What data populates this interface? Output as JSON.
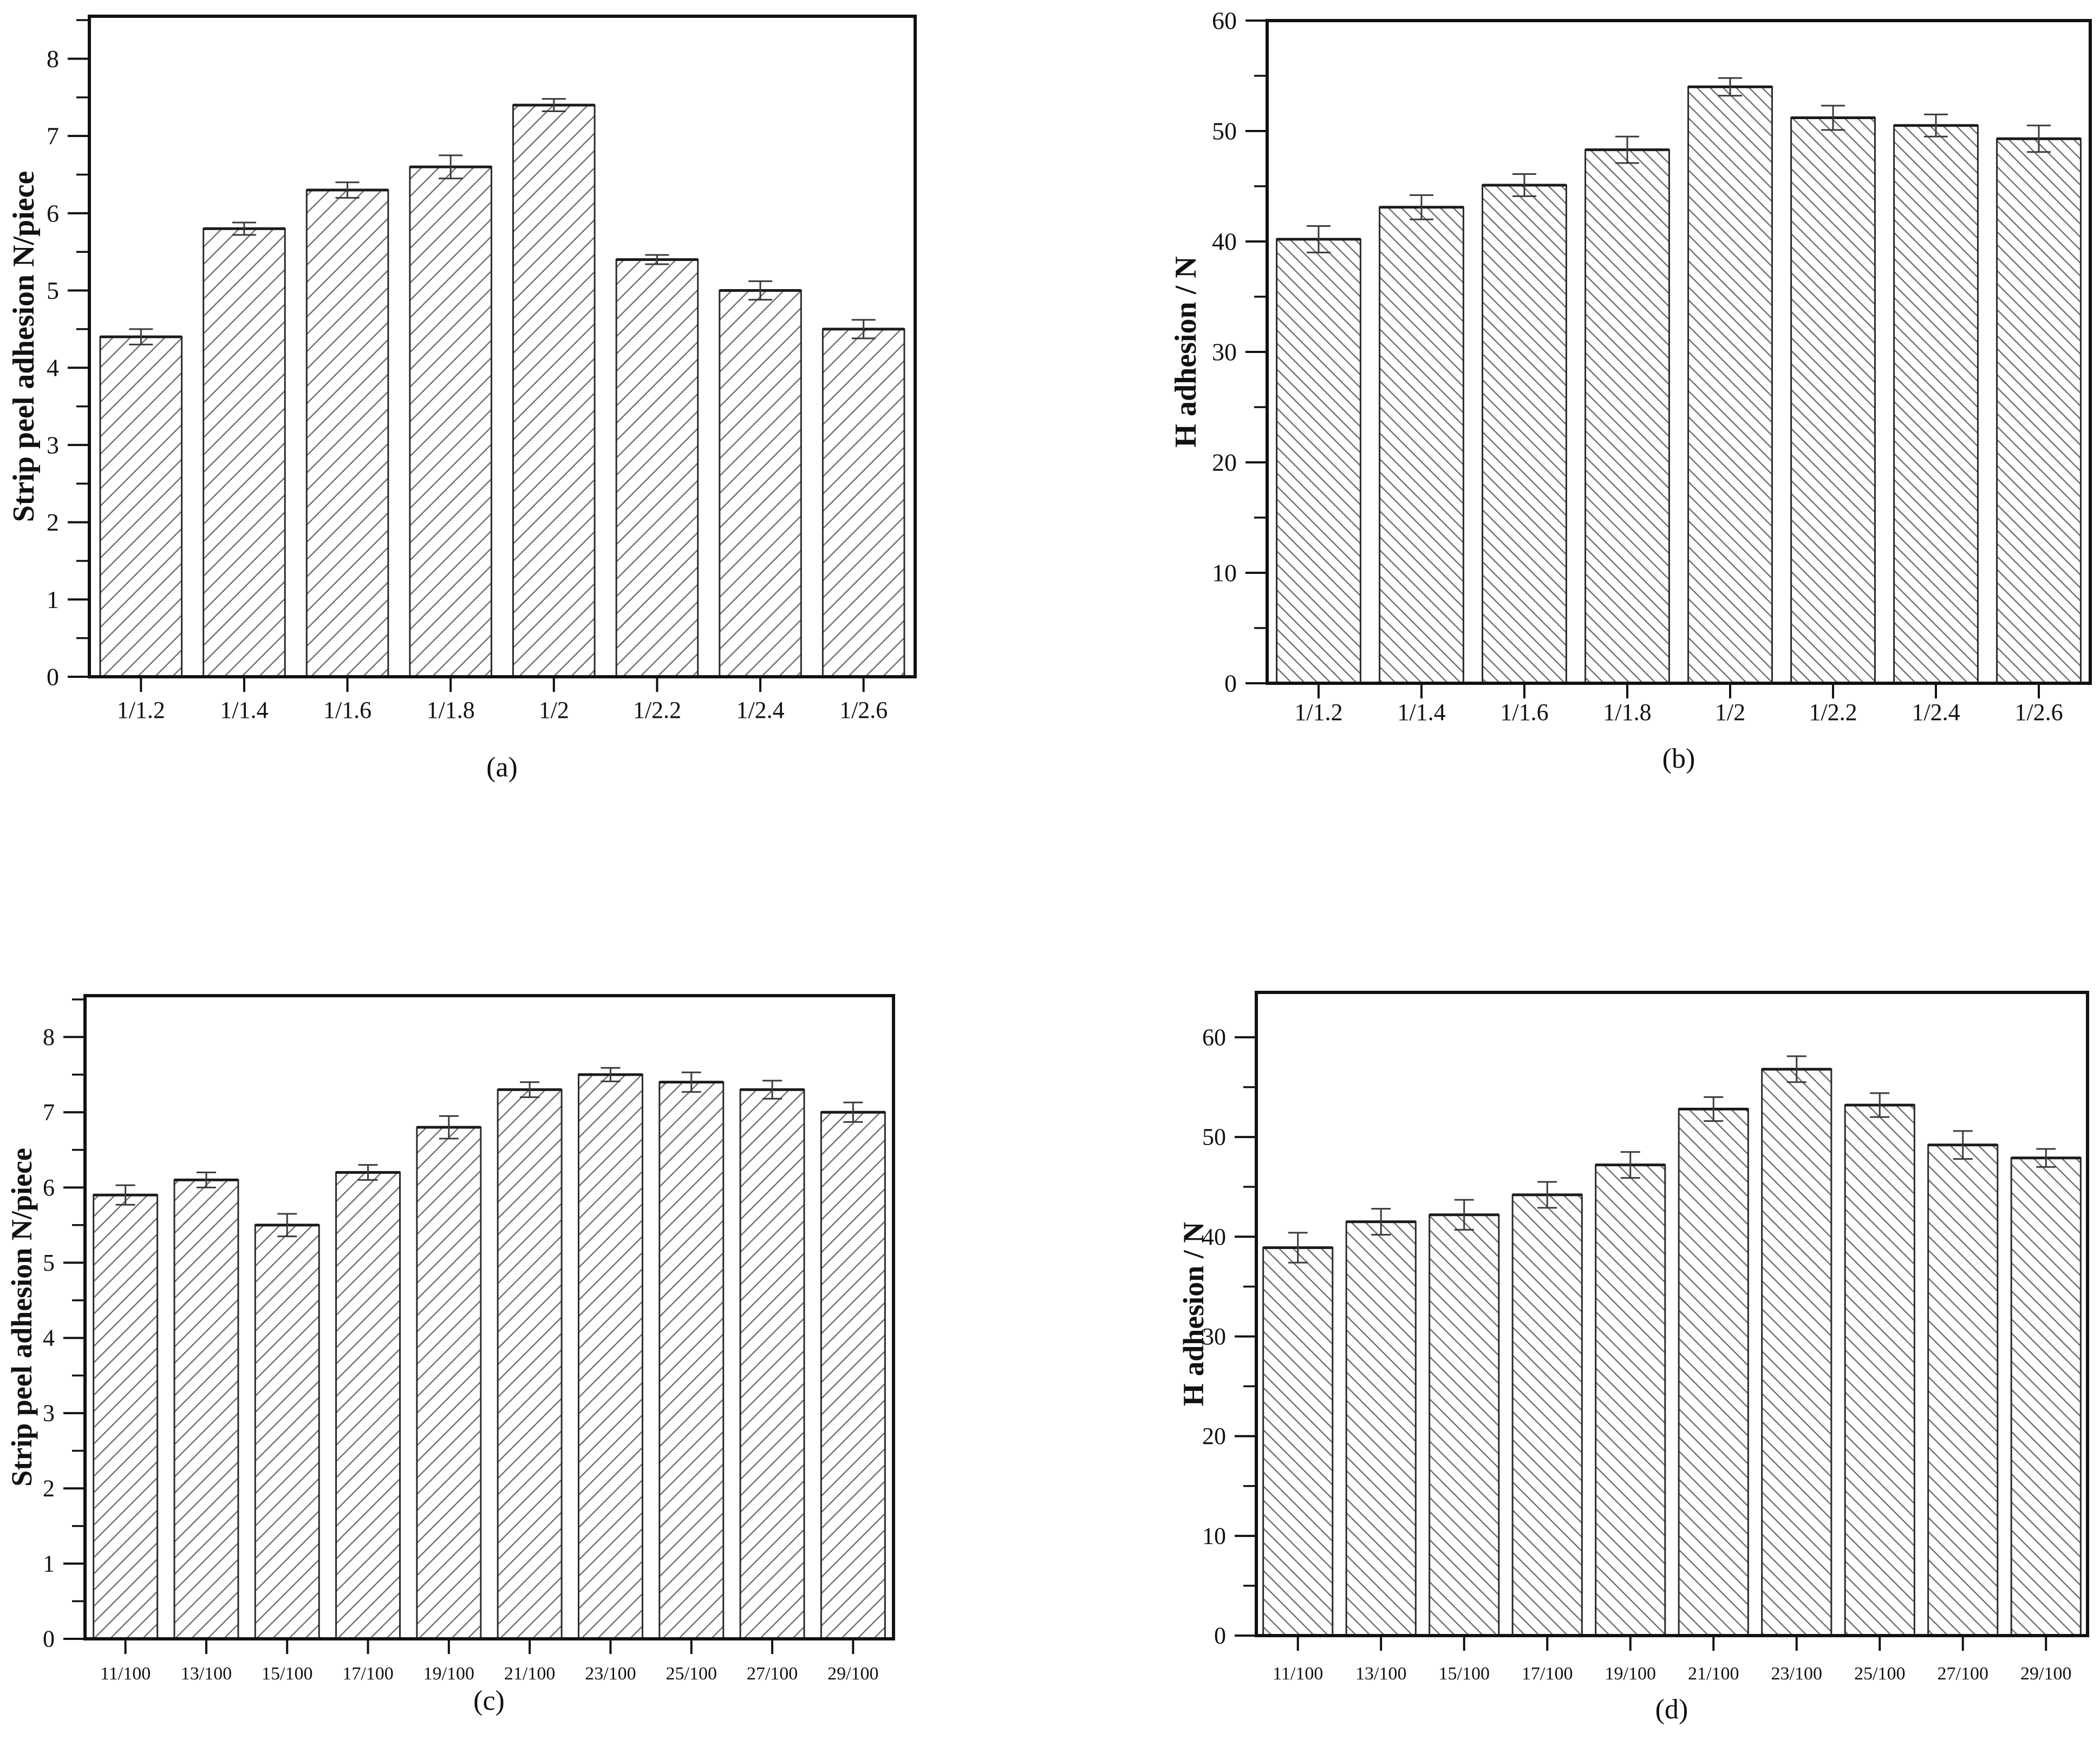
{
  "page": {
    "background": "#ffffff"
  },
  "chart_data": [
    {
      "id": "a",
      "type": "bar",
      "caption": "(a)",
      "title": "",
      "xlabel": "",
      "ylabel": "Strip peel adhesion  N/piece",
      "categories": [
        "1/1.2",
        "1/1.4",
        "1/1.6",
        "1/1.8",
        "1/2",
        "1/2.2",
        "1/2.4",
        "1/2.6"
      ],
      "values": [
        4.4,
        5.8,
        6.3,
        6.6,
        7.4,
        5.4,
        5.0,
        4.5
      ],
      "errors": [
        0.1,
        0.08,
        0.1,
        0.15,
        0.08,
        0.06,
        0.12,
        0.12
      ],
      "yticks": [
        0,
        1,
        2,
        3,
        4,
        5,
        6,
        7,
        8
      ],
      "minor_tick_step": 0.5,
      "ylim": [
        0,
        8.55
      ],
      "grid": false,
      "legend": "none",
      "hatch_direction": "forward",
      "bar_fill": "#ffffff",
      "hatch_color": "#6f6f6f",
      "outline_color": "#2b2b2b"
    },
    {
      "id": "b",
      "type": "bar",
      "caption": "(b)",
      "title": "",
      "xlabel": "",
      "ylabel": "H adhesion / N",
      "categories": [
        "1/1.2",
        "1/1.4",
        "1/1.6",
        "1/1.8",
        "1/2",
        "1/2.2",
        "1/2.4",
        "1/2.6"
      ],
      "values": [
        40.2,
        43.1,
        45.1,
        48.3,
        54.0,
        51.2,
        50.5,
        49.3
      ],
      "errors": [
        1.2,
        1.1,
        1.0,
        1.2,
        0.8,
        1.1,
        1.0,
        1.2
      ],
      "yticks": [
        0,
        10,
        20,
        30,
        40,
        50,
        60
      ],
      "minor_tick_step": 5,
      "ylim": [
        0,
        60
      ],
      "grid": false,
      "legend": "none",
      "hatch_direction": "backward",
      "bar_fill": "#ffffff",
      "hatch_color": "#6f6f6f",
      "outline_color": "#2b2b2b"
    },
    {
      "id": "c",
      "type": "bar",
      "caption": "(c)",
      "title": "",
      "xlabel": "",
      "ylabel": "Strip peel adhesion  N/piece",
      "categories": [
        "11/100",
        "13/100",
        "15/100",
        "17/100",
        "19/100",
        "21/100",
        "23/100",
        "25/100",
        "27/100",
        "29/100"
      ],
      "values": [
        5.9,
        6.1,
        5.5,
        6.2,
        6.8,
        7.3,
        7.5,
        7.4,
        7.3,
        7.0
      ],
      "errors": [
        0.13,
        0.1,
        0.15,
        0.1,
        0.15,
        0.1,
        0.09,
        0.13,
        0.12,
        0.13
      ],
      "yticks": [
        0,
        1,
        2,
        3,
        4,
        5,
        6,
        7,
        8
      ],
      "minor_tick_step": 0.5,
      "ylim": [
        0,
        8.55
      ],
      "grid": false,
      "legend": "none",
      "hatch_direction": "forward",
      "bar_fill": "#ffffff",
      "hatch_color": "#6f6f6f",
      "outline_color": "#2b2b2b"
    },
    {
      "id": "d",
      "type": "bar",
      "caption": "(d)",
      "title": "",
      "xlabel": "",
      "ylabel": "H adhesion / N",
      "categories": [
        "11/100",
        "13/100",
        "15/100",
        "17/100",
        "19/100",
        "21/100",
        "23/100",
        "25/100",
        "27/100",
        "29/100"
      ],
      "values": [
        38.9,
        41.5,
        42.2,
        44.2,
        47.2,
        52.8,
        56.8,
        53.2,
        49.2,
        47.9
      ],
      "errors": [
        1.5,
        1.3,
        1.5,
        1.3,
        1.3,
        1.2,
        1.3,
        1.2,
        1.4,
        0.9
      ],
      "yticks": [
        0,
        10,
        20,
        30,
        40,
        50,
        60
      ],
      "minor_tick_step": 5,
      "ylim": [
        0,
        64.5
      ],
      "grid": false,
      "legend": "none",
      "hatch_direction": "backward",
      "bar_fill": "#ffffff",
      "hatch_color": "#6f6f6f",
      "outline_color": "#2b2b2b"
    }
  ]
}
